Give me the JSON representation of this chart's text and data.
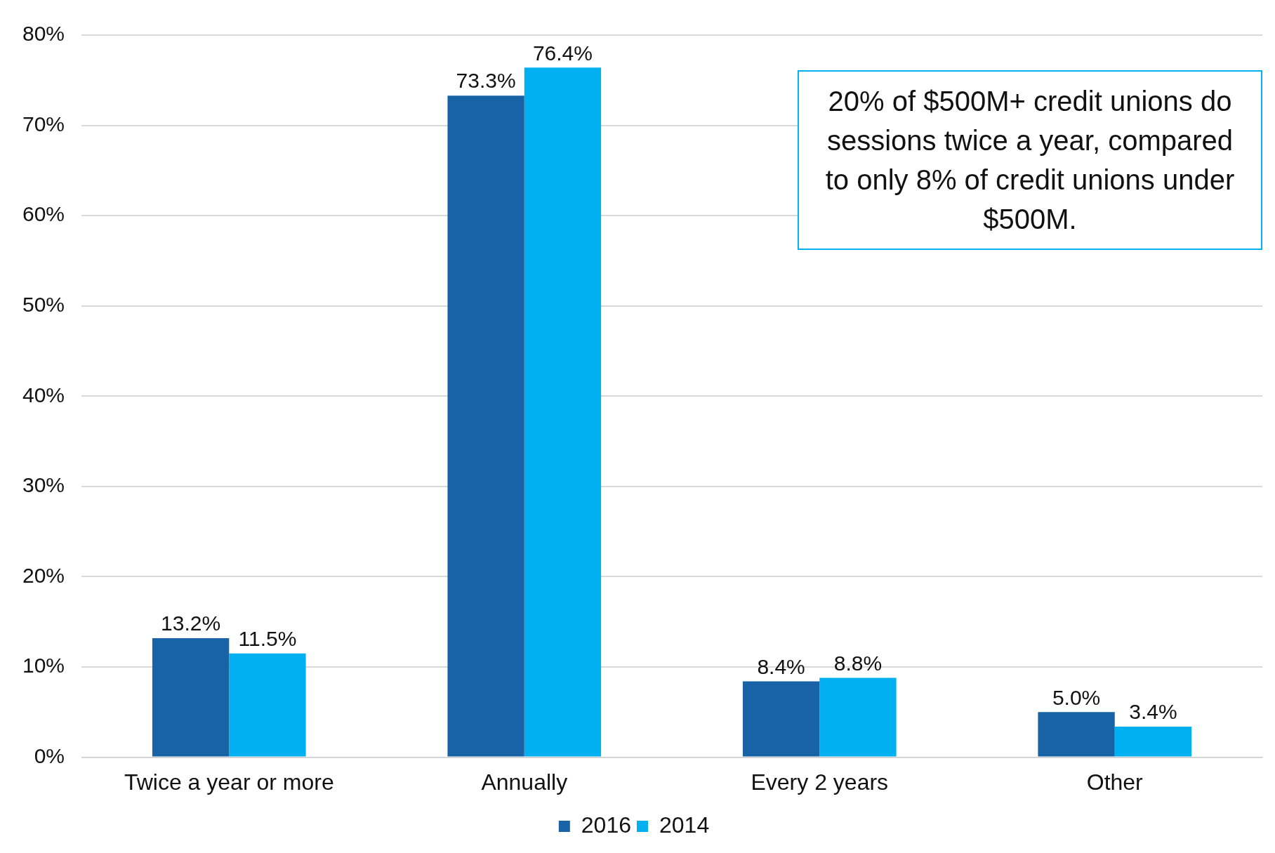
{
  "chart_data": {
    "type": "bar",
    "categories": [
      "Twice a year or more",
      "Annually",
      "Every 2 years",
      "Other"
    ],
    "series": [
      {
        "name": "2016",
        "color": "#1763a6",
        "values": [
          13.2,
          73.3,
          8.4,
          5.0
        ],
        "value_labels": [
          "13.2%",
          "73.3%",
          "8.4%",
          "5.0%"
        ]
      },
      {
        "name": "2014",
        "color": "#00b0f0",
        "values": [
          11.5,
          76.4,
          8.8,
          3.4
        ],
        "value_labels": [
          "11.5%",
          "76.4%",
          "8.8%",
          "3.4%"
        ]
      }
    ],
    "ylim": [
      0,
      80
    ],
    "yticks": [
      {
        "value": 0,
        "label": "0%"
      },
      {
        "value": 10,
        "label": "10%"
      },
      {
        "value": 20,
        "label": "20%"
      },
      {
        "value": 30,
        "label": "30%"
      },
      {
        "value": 40,
        "label": "40%"
      },
      {
        "value": 50,
        "label": "50%"
      },
      {
        "value": 60,
        "label": "60%"
      },
      {
        "value": 70,
        "label": "70%"
      },
      {
        "value": 80,
        "label": "80%"
      }
    ],
    "grid": "y",
    "legend": "bottom",
    "annotations": [
      "20% of $500M+ credit unions do sessions twice a year, compared to only 8% of credit unions under $500M."
    ]
  }
}
